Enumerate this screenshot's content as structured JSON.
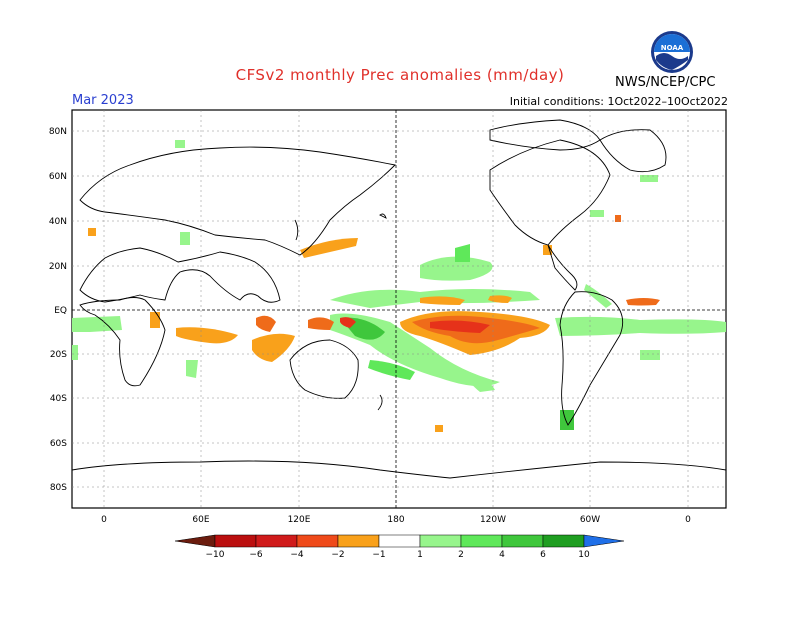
{
  "header": {
    "title": "CFSv2 monthly Prec anomalies (mm/day)",
    "month": "Mar 2023",
    "initial_conditions": "Initial conditions: 1Oct2022–10Oct2022",
    "agency": "NWS/NCEP/CPC",
    "logo_text": "NOAA"
  },
  "map": {
    "projection": "equirectangular, centered 180",
    "lat_labels": [
      "80N",
      "60N",
      "40N",
      "20N",
      "EQ",
      "20S",
      "40S",
      "60S",
      "80S"
    ],
    "lon_labels": [
      "0",
      "60E",
      "120E",
      "180",
      "120W",
      "60W",
      "0"
    ],
    "grid": "dotted",
    "colors": {
      "dry1": "#f9a11b",
      "dry2": "#ef6b1a",
      "dry3": "#e6321a",
      "dry4": "#bb0f0f",
      "dry5": "#6b1c0e",
      "wet1": "#97f58c",
      "wet2": "#5fe85a",
      "wet3": "#3fc73c",
      "wet4": "#1f9e21",
      "wet5": "#138f18",
      "extreme_wet": "#1f6fe8"
    }
  },
  "colorbar": {
    "labels": [
      "−10",
      "−6",
      "−4",
      "−2",
      "−1",
      "1",
      "2",
      "4",
      "6",
      "10"
    ]
  }
}
